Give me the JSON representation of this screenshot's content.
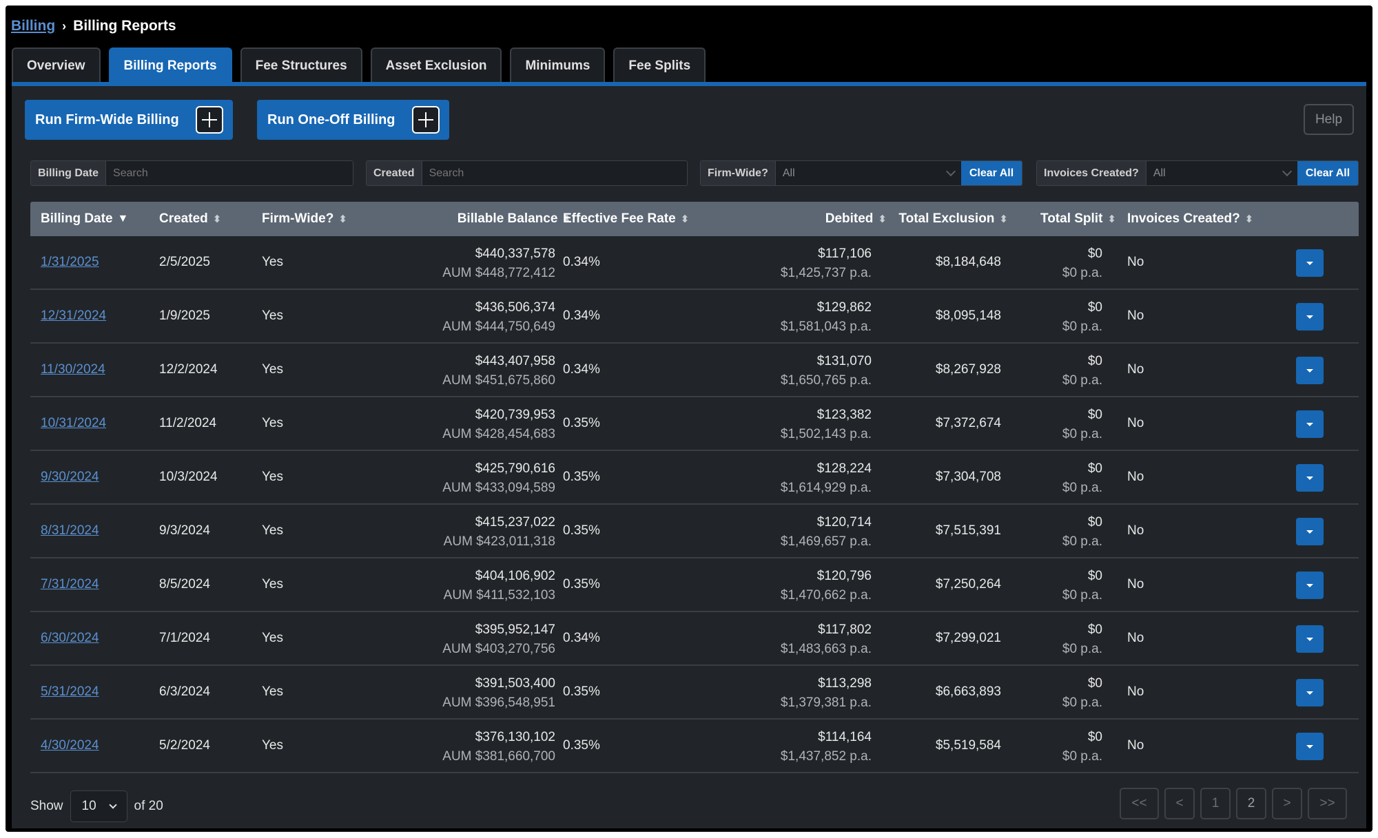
{
  "breadcrumb": {
    "parent": "Billing",
    "separator": "›",
    "current": "Billing Reports"
  },
  "tabs": [
    {
      "label": "Overview",
      "active": false
    },
    {
      "label": "Billing Reports",
      "active": true
    },
    {
      "label": "Fee Structures",
      "active": false
    },
    {
      "label": "Asset Exclusion",
      "active": false
    },
    {
      "label": "Minimums",
      "active": false
    },
    {
      "label": "Fee Splits",
      "active": false
    }
  ],
  "actions": {
    "firm_wide": "Run Firm-Wide Billing",
    "one_off": "Run One-Off Billing",
    "help": "Help"
  },
  "filters": {
    "billing_date": {
      "label": "Billing Date",
      "placeholder": "Search"
    },
    "created": {
      "label": "Created",
      "placeholder": "Search"
    },
    "firm_wide": {
      "label": "Firm-Wide?",
      "value": "All",
      "clear": "Clear All"
    },
    "invoices_created": {
      "label": "Invoices Created?",
      "value": "All",
      "clear": "Clear All"
    }
  },
  "columns": {
    "billing_date": "Billing Date",
    "created": "Created",
    "firm_wide": "Firm-Wide?",
    "billable_balance": "Billable Balance",
    "effective_fee_rate": "Effective Fee Rate",
    "debited": "Debited",
    "total_exclusion": "Total Exclusion",
    "total_split": "Total Split",
    "invoices_created": "Invoices Created?"
  },
  "sort_icons": {
    "active": "▼",
    "inactive": "⬍"
  },
  "rows": [
    {
      "billing_date": "1/31/2025",
      "created": "2/5/2025",
      "firm_wide": "Yes",
      "balance": "$440,337,578",
      "aum": "AUM $448,772,412",
      "rate": "0.34%",
      "debited": "$117,106",
      "debited_pa": "$1,425,737 p.a.",
      "exclusion": "$8,184,648",
      "split": "$0",
      "split_pa": "$0 p.a.",
      "invoices": "No"
    },
    {
      "billing_date": "12/31/2024",
      "created": "1/9/2025",
      "firm_wide": "Yes",
      "balance": "$436,506,374",
      "aum": "AUM $444,750,649",
      "rate": "0.34%",
      "debited": "$129,862",
      "debited_pa": "$1,581,043 p.a.",
      "exclusion": "$8,095,148",
      "split": "$0",
      "split_pa": "$0 p.a.",
      "invoices": "No"
    },
    {
      "billing_date": "11/30/2024",
      "created": "12/2/2024",
      "firm_wide": "Yes",
      "balance": "$443,407,958",
      "aum": "AUM $451,675,860",
      "rate": "0.34%",
      "debited": "$131,070",
      "debited_pa": "$1,650,765 p.a.",
      "exclusion": "$8,267,928",
      "split": "$0",
      "split_pa": "$0 p.a.",
      "invoices": "No"
    },
    {
      "billing_date": "10/31/2024",
      "created": "11/2/2024",
      "firm_wide": "Yes",
      "balance": "$420,739,953",
      "aum": "AUM $428,454,683",
      "rate": "0.35%",
      "debited": "$123,382",
      "debited_pa": "$1,502,143 p.a.",
      "exclusion": "$7,372,674",
      "split": "$0",
      "split_pa": "$0 p.a.",
      "invoices": "No"
    },
    {
      "billing_date": "9/30/2024",
      "created": "10/3/2024",
      "firm_wide": "Yes",
      "balance": "$425,790,616",
      "aum": "AUM $433,094,589",
      "rate": "0.35%",
      "debited": "$128,224",
      "debited_pa": "$1,614,929 p.a.",
      "exclusion": "$7,304,708",
      "split": "$0",
      "split_pa": "$0 p.a.",
      "invoices": "No"
    },
    {
      "billing_date": "8/31/2024",
      "created": "9/3/2024",
      "firm_wide": "Yes",
      "balance": "$415,237,022",
      "aum": "AUM $423,011,318",
      "rate": "0.35%",
      "debited": "$120,714",
      "debited_pa": "$1,469,657 p.a.",
      "exclusion": "$7,515,391",
      "split": "$0",
      "split_pa": "$0 p.a.",
      "invoices": "No"
    },
    {
      "billing_date": "7/31/2024",
      "created": "8/5/2024",
      "firm_wide": "Yes",
      "balance": "$404,106,902",
      "aum": "AUM $411,532,103",
      "rate": "0.35%",
      "debited": "$120,796",
      "debited_pa": "$1,470,662 p.a.",
      "exclusion": "$7,250,264",
      "split": "$0",
      "split_pa": "$0 p.a.",
      "invoices": "No"
    },
    {
      "billing_date": "6/30/2024",
      "created": "7/1/2024",
      "firm_wide": "Yes",
      "balance": "$395,952,147",
      "aum": "AUM $403,270,756",
      "rate": "0.34%",
      "debited": "$117,802",
      "debited_pa": "$1,483,663 p.a.",
      "exclusion": "$7,299,021",
      "split": "$0",
      "split_pa": "$0 p.a.",
      "invoices": "No"
    },
    {
      "billing_date": "5/31/2024",
      "created": "6/3/2024",
      "firm_wide": "Yes",
      "balance": "$391,503,400",
      "aum": "AUM $396,548,951",
      "rate": "0.35%",
      "debited": "$113,298",
      "debited_pa": "$1,379,381 p.a.",
      "exclusion": "$6,663,893",
      "split": "$0",
      "split_pa": "$0 p.a.",
      "invoices": "No"
    },
    {
      "billing_date": "4/30/2024",
      "created": "5/2/2024",
      "firm_wide": "Yes",
      "balance": "$376,130,102",
      "aum": "AUM $381,660,700",
      "rate": "0.35%",
      "debited": "$114,164",
      "debited_pa": "$1,437,852 p.a.",
      "exclusion": "$5,519,584",
      "split": "$0",
      "split_pa": "$0 p.a.",
      "invoices": "No"
    }
  ],
  "footer": {
    "show_label": "Show",
    "page_size": "10",
    "of_label": "of 20",
    "pager": {
      "first": "<<",
      "prev": "<",
      "page1": "1",
      "page2": "2",
      "next": ">",
      "last": ">>"
    }
  },
  "colors": {
    "accent": "#1767b4",
    "link": "#5b8fd0",
    "panel": "#212529",
    "header": "#5c6773"
  }
}
